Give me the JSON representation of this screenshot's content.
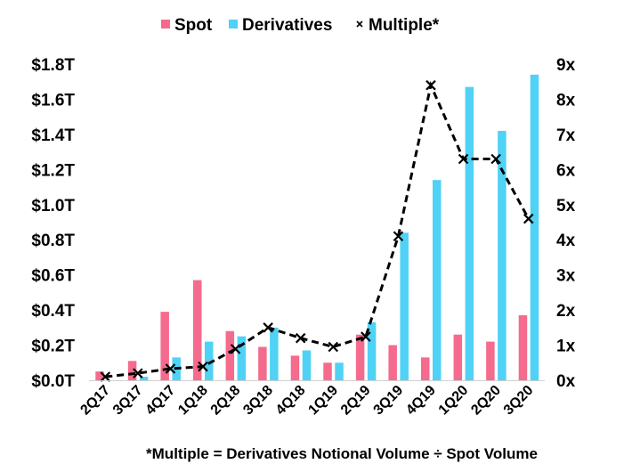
{
  "chart_data": {
    "type": "bar",
    "categories": [
      "2Q17",
      "3Q17",
      "4Q17",
      "1Q18",
      "2Q18",
      "3Q18",
      "4Q18",
      "1Q19",
      "2Q19",
      "3Q19",
      "4Q19",
      "1Q20",
      "2Q20",
      "3Q20"
    ],
    "series": [
      {
        "name": "Spot",
        "kind": "bar",
        "axis": "left",
        "color": "#f56b8d",
        "values": [
          0.05,
          0.11,
          0.39,
          0.57,
          0.28,
          0.19,
          0.14,
          0.1,
          0.26,
          0.2,
          0.13,
          0.26,
          0.22,
          0.37
        ]
      },
      {
        "name": "Derivatives",
        "kind": "bar",
        "axis": "left",
        "color": "#4fd2f5",
        "values": [
          0.0,
          0.02,
          0.13,
          0.22,
          0.25,
          0.3,
          0.17,
          0.1,
          0.33,
          0.84,
          1.14,
          1.67,
          1.42,
          1.74
        ]
      },
      {
        "name": "Multiple*",
        "kind": "line",
        "axis": "right",
        "color": "#000000",
        "dashed": true,
        "marker": "x",
        "values": [
          0.1,
          0.2,
          0.33,
          0.39,
          0.89,
          1.5,
          1.2,
          0.95,
          1.24,
          4.1,
          8.4,
          6.3,
          6.3,
          4.6
        ]
      }
    ],
    "y_left": {
      "lim": [
        0,
        1.8
      ],
      "ticks": [
        0,
        0.2,
        0.4,
        0.6,
        0.8,
        1.0,
        1.2,
        1.4,
        1.6,
        1.8
      ],
      "tick_labels": [
        "$0.0T",
        "$0.2T",
        "$0.4T",
        "$0.6T",
        "$0.8T",
        "$1.0T",
        "$1.2T",
        "$1.4T",
        "$1.6T",
        "$1.8T"
      ]
    },
    "y_right": {
      "lim": [
        0,
        9
      ],
      "ticks": [
        0,
        1,
        2,
        3,
        4,
        5,
        6,
        7,
        8,
        9
      ],
      "tick_labels": [
        "0x",
        "1x",
        "2x",
        "3x",
        "4x",
        "5x",
        "6x",
        "7x",
        "8x",
        "9x"
      ]
    },
    "grid": false,
    "legend_position": "top-center",
    "footnote": "*Multiple = Derivatives Notional Volume ÷ Spot Volume"
  }
}
